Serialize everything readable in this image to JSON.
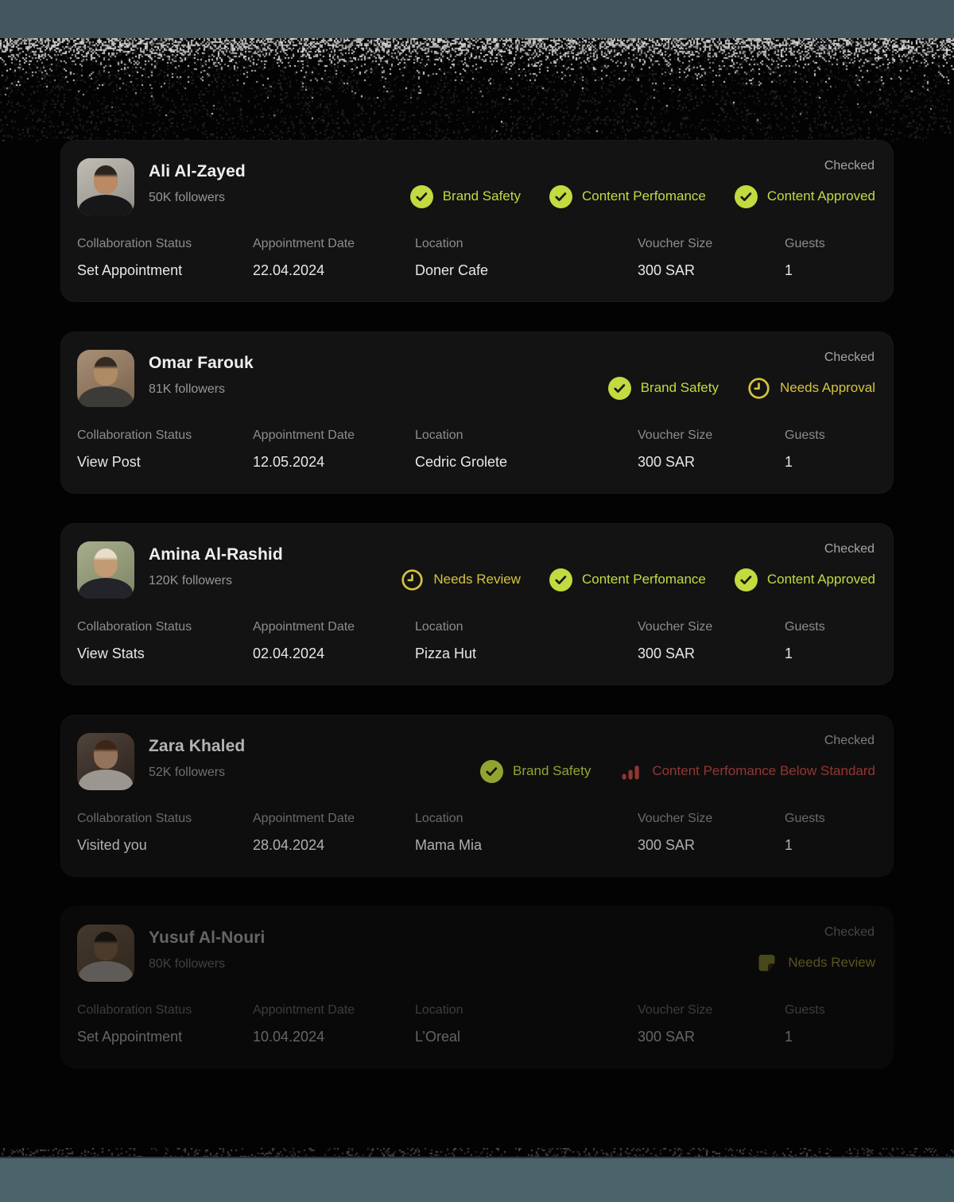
{
  "columns": [
    "Collaboration Status",
    "Appointment Date",
    "Location",
    "Voucher Size",
    "Guests"
  ],
  "cards": [
    {
      "name": "Ali Al-Zayed",
      "followers": "50K followers",
      "checked": "Checked",
      "state": "active",
      "badges": [
        {
          "icon": "check-circle",
          "label": "Brand Safety",
          "style": "green"
        },
        {
          "icon": "check-circle",
          "label": "Content Perfomance",
          "style": "green"
        },
        {
          "icon": "check-circle",
          "label": "Content Approved",
          "style": "green"
        }
      ],
      "fields": {
        "collaboration_status": "Set Appointment",
        "appointment_date": "22.04.2024",
        "location": "Doner Cafe",
        "voucher_size": "300 SAR",
        "guests": "1"
      }
    },
    {
      "name": "Omar Farouk",
      "followers": "81K followers",
      "checked": "Checked",
      "state": "active",
      "badges": [
        {
          "icon": "check-circle",
          "label": "Brand Safety",
          "style": "green"
        },
        {
          "icon": "clock",
          "label": "Needs Approval",
          "style": "yellow"
        }
      ],
      "fields": {
        "collaboration_status": "View Post",
        "appointment_date": "12.05.2024",
        "location": "Cedric Grolete",
        "voucher_size": "300 SAR",
        "guests": "1"
      }
    },
    {
      "name": "Amina Al-Rashid",
      "followers": "120K followers",
      "checked": "Checked",
      "state": "active",
      "badges": [
        {
          "icon": "clock",
          "label": "Needs Review",
          "style": "yellow"
        },
        {
          "icon": "check-circle",
          "label": "Content Perfomance",
          "style": "green"
        },
        {
          "icon": "check-circle",
          "label": "Content Approved",
          "style": "green"
        }
      ],
      "fields": {
        "collaboration_status": "View Stats",
        "appointment_date": "02.04.2024",
        "location": "Pizza Hut",
        "voucher_size": "300 SAR",
        "guests": "1"
      }
    },
    {
      "name": "Zara Khaled",
      "followers": "52K followers",
      "checked": "Checked",
      "state": "dimmed",
      "badges": [
        {
          "icon": "check-circle",
          "label": "Brand Safety",
          "style": "green"
        },
        {
          "icon": "bar-chart",
          "label": "Content Perfomance Below Standard",
          "style": "red"
        }
      ],
      "fields": {
        "collaboration_status": "Visited you",
        "appointment_date": "28.04.2024",
        "location": "Mama Mia",
        "voucher_size": "300 SAR",
        "guests": "1"
      }
    },
    {
      "name": "Yusuf Al-Nouri",
      "followers": "80K followers",
      "checked": "Checked",
      "state": "faded",
      "badges": [
        {
          "icon": "document",
          "label": "Needs Review",
          "style": "olive"
        }
      ],
      "fields": {
        "collaboration_status": "Set Appointment",
        "appointment_date": "10.04.2024",
        "location": "L’Oreal",
        "voucher_size": "300 SAR",
        "guests": "1"
      }
    }
  ],
  "colors": {
    "accent_green": "#c3da40",
    "accent_yellow": "#d5c33d",
    "accent_red": "#c0493f",
    "accent_olive": "#c9c344",
    "card_bg": "#131313",
    "band_top": "#44565e",
    "band_bottom": "#4b636b"
  }
}
